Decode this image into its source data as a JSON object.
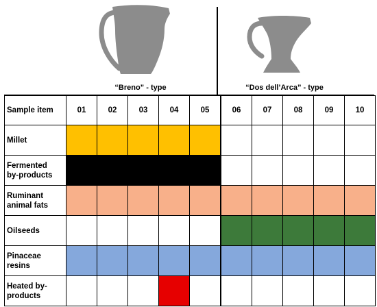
{
  "groups": [
    {
      "label": "“Breno” - type"
    },
    {
      "label": "“Dos dell’Arca” - type"
    }
  ],
  "header": {
    "label": "Sample item",
    "samples": [
      "01",
      "02",
      "03",
      "04",
      "05",
      "06",
      "07",
      "08",
      "09",
      "10"
    ]
  },
  "rows": [
    {
      "label_lines": [
        "Millet"
      ],
      "fills": [
        "orange",
        "orange",
        "orange",
        "orange",
        "orange",
        "",
        "",
        "",
        "",
        ""
      ]
    },
    {
      "label_lines": [
        "Fermented",
        "by-products"
      ],
      "fills": [
        "black",
        "black",
        "black",
        "black",
        "black",
        "",
        "",
        "",
        "",
        ""
      ]
    },
    {
      "label_lines": [
        "Ruminant",
        "animal fats"
      ],
      "fills": [
        "peach",
        "peach",
        "peach",
        "peach",
        "peach",
        "peach",
        "peach",
        "peach",
        "peach",
        "peach"
      ]
    },
    {
      "label_lines": [
        "Oilseeds"
      ],
      "fills": [
        "",
        "",
        "",
        "",
        "",
        "green",
        "green",
        "green",
        "green",
        "green"
      ]
    },
    {
      "label_lines": [
        "Pinaceae",
        "resins"
      ],
      "fills": [
        "blue",
        "blue",
        "blue",
        "blue",
        "blue",
        "blue",
        "blue",
        "blue",
        "blue",
        "blue"
      ]
    },
    {
      "label_lines": [
        "Heated by-",
        "products"
      ],
      "fills": [
        "",
        "",
        "",
        "red",
        "",
        "",
        "",
        "",
        "",
        ""
      ]
    }
  ],
  "colors": {
    "orange": "#FFC000",
    "black": "#000000",
    "peach": "#F8B08A",
    "green": "#3D7A3A",
    "blue": "#85A8DC",
    "red": "#E60000",
    "vessel": "#8C8C8C"
  }
}
